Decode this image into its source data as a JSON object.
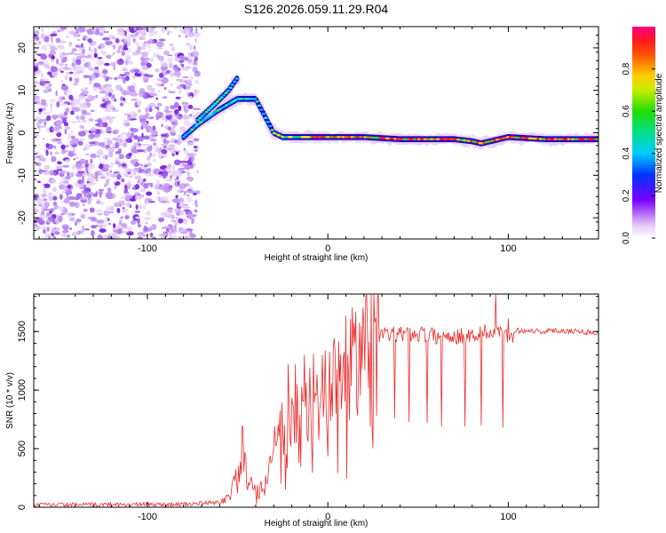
{
  "title": "S126.2026.059.11.29.R04",
  "chart_data": [
    {
      "type": "heatmap",
      "xlabel": "Height of straight line (km)",
      "ylabel": "Frequency (Hz)",
      "xlim": [
        -163,
        150
      ],
      "ylim": [
        -25,
        25
      ],
      "xticks": [
        -100,
        0,
        100
      ],
      "yticks": [
        -20,
        -10,
        0,
        10,
        20
      ],
      "colorbar": {
        "label": "Normalized spectral amplitude",
        "range": [
          0,
          1
        ],
        "ticks": [
          "0.0",
          "0.2",
          "0.4",
          "0.6",
          "0.8"
        ],
        "tick_values": [
          0,
          0.2,
          0.4,
          0.6,
          0.8
        ]
      },
      "noise_region_x": [
        -163,
        -72
      ],
      "ridge": {
        "x": [
          -80,
          -72,
          -62,
          -50,
          -40,
          -35,
          -30,
          -25,
          -15,
          -5,
          0,
          20,
          40,
          60,
          70,
          80,
          85,
          90,
          95,
          100,
          120,
          150
        ],
        "y": [
          -1,
          2,
          5,
          8,
          8,
          4,
          0,
          -1,
          -1,
          -1,
          -1,
          -1,
          -1.5,
          -1.5,
          -1.5,
          -2,
          -2.5,
          -2,
          -1.5,
          -1,
          -1.5,
          -1.5
        ]
      },
      "branch": {
        "x": [
          -72,
          -62,
          -55,
          -50
        ],
        "y": [
          3,
          7,
          10,
          13
        ]
      }
    },
    {
      "type": "line",
      "xlabel": "Height of straight line (km)",
      "ylabel": "SNR (10 * v/v)",
      "xlim": [
        -163,
        150
      ],
      "ylim": [
        0,
        1820
      ],
      "xticks": [
        -100,
        0,
        100
      ],
      "yticks": [
        0,
        500,
        1000,
        1500
      ],
      "color": "#ee2b2b",
      "baseline": {
        "x": [
          -163,
          -80,
          -60,
          -55,
          -50,
          -47,
          -45,
          -40,
          -35,
          -30,
          -25,
          -20,
          -15,
          -10,
          -5,
          0,
          5,
          10,
          15,
          20,
          25,
          30,
          35,
          40,
          50,
          60,
          70,
          80,
          90,
          95,
          100,
          105,
          110,
          120,
          130,
          140,
          150
        ],
        "y": [
          20,
          25,
          40,
          90,
          250,
          500,
          230,
          120,
          200,
          450,
          600,
          700,
          800,
          900,
          950,
          1000,
          1050,
          1200,
          1300,
          1400,
          1450,
          1480,
          1470,
          1480,
          1480,
          1460,
          1460,
          1470,
          1490,
          1500,
          1440,
          1510,
          1510,
          1500,
          1510,
          1500,
          1490
        ]
      },
      "spikes": [
        {
          "x": -47,
          "y": 670
        },
        {
          "x": -22,
          "y": 1220
        },
        {
          "x": -18,
          "y": 1220
        },
        {
          "x": -13,
          "y": 1300
        },
        {
          "x": -8,
          "y": 1310
        },
        {
          "x": 3,
          "y": 1360
        },
        {
          "x": 15,
          "y": 1400
        },
        {
          "x": 33,
          "y": 1520
        },
        {
          "x": 52,
          "y": 1540
        },
        {
          "x": 72,
          "y": 1520
        },
        {
          "x": 87,
          "y": 1560
        },
        {
          "x": 93,
          "y": 1820
        },
        {
          "x": 100,
          "y": 1610
        }
      ],
      "dips": [
        {
          "x": 27,
          "y": 780
        },
        {
          "x": 37,
          "y": 760
        },
        {
          "x": 45,
          "y": 730
        },
        {
          "x": 55,
          "y": 720
        },
        {
          "x": 63,
          "y": 690
        },
        {
          "x": 76,
          "y": 690
        },
        {
          "x": 85,
          "y": 700
        },
        {
          "x": 97,
          "y": 680
        }
      ]
    }
  ]
}
